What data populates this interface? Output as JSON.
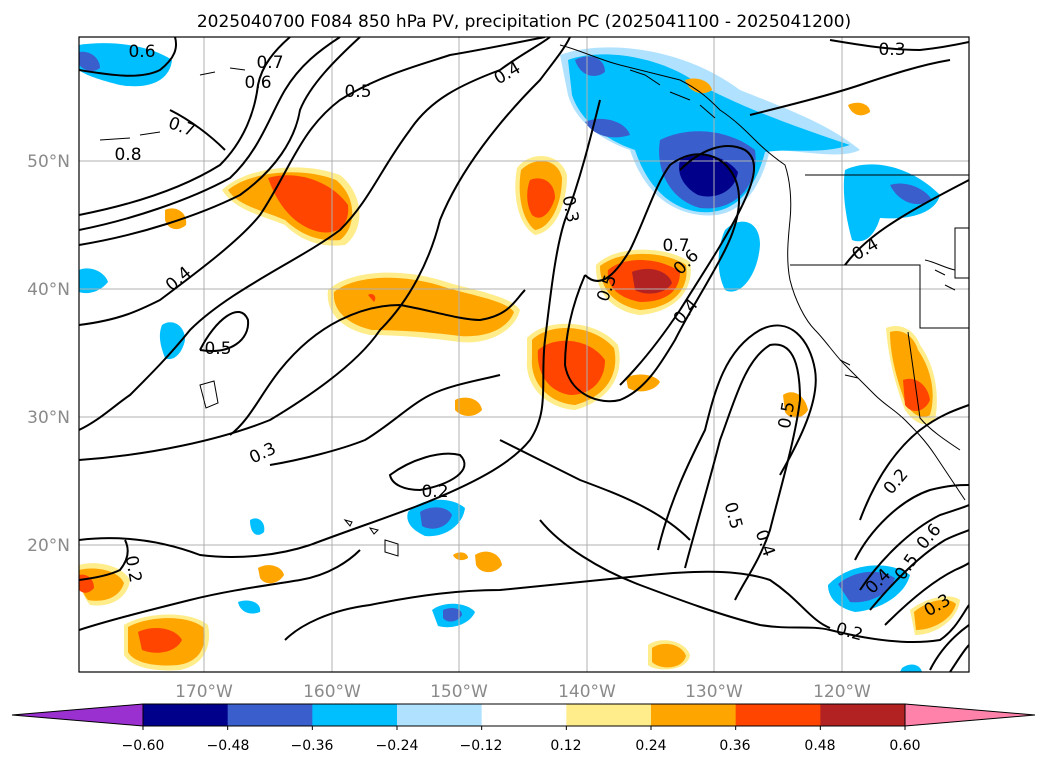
{
  "title": "2025040700 F084 850 hPa PV, precipitation PC (2025041100 - 2025041200)",
  "lat_labels": [
    "50°N",
    "40°N",
    "30°N",
    "20°N"
  ],
  "lon_labels": [
    "170°W",
    "160°W",
    "150°W",
    "140°W",
    "130°W",
    "120°W"
  ],
  "colorbar": {
    "tick_labels": [
      "−0.60",
      "−0.48",
      "−0.36",
      "−0.24",
      "−0.12",
      "0.12",
      "0.24",
      "0.36",
      "0.48",
      "0.60"
    ],
    "colors": [
      "#9b30d0",
      "#00008b",
      "#3a5fcd",
      "#00bfff",
      "#b0e2ff",
      "#ffffff",
      "#ffec8b",
      "#ffa500",
      "#ff4500",
      "#b22222",
      "#ff82ab"
    ]
  },
  "contour_labels": [
    {
      "text": "0.6"
    },
    {
      "text": "0.7"
    },
    {
      "text": "0.6"
    },
    {
      "text": "0.5"
    },
    {
      "text": "0.7"
    },
    {
      "text": "0.8"
    },
    {
      "text": "0.4"
    },
    {
      "text": "0.3"
    },
    {
      "text": "0.4"
    },
    {
      "text": "0.5"
    },
    {
      "text": "0.3"
    },
    {
      "text": "0.2"
    },
    {
      "text": "0.2"
    },
    {
      "text": "0.3"
    },
    {
      "text": "0.7"
    },
    {
      "text": "0.6"
    },
    {
      "text": "0.5"
    },
    {
      "text": "0.4"
    },
    {
      "text": "0.4"
    },
    {
      "text": "0.5"
    },
    {
      "text": "0.5"
    },
    {
      "text": "0.4"
    },
    {
      "text": "0.2"
    },
    {
      "text": "0.6"
    },
    {
      "text": "0.5"
    },
    {
      "text": "0.4"
    },
    {
      "text": "0.3"
    },
    {
      "text": "0.2"
    }
  ]
}
